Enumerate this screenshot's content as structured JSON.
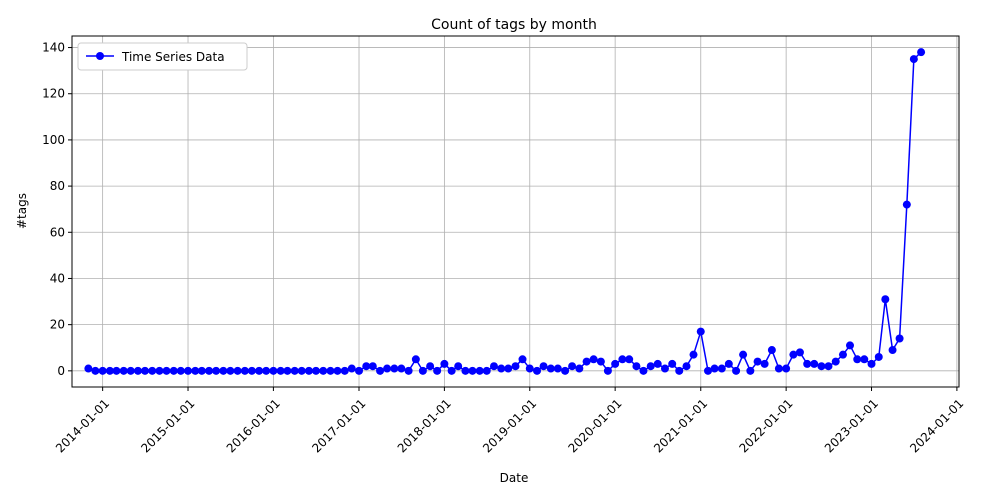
{
  "chart_data": {
    "type": "line",
    "title": "Count of tags by month",
    "xlabel": "Date",
    "ylabel": "#tags",
    "grid": true,
    "legend_position": "top-left",
    "series": [
      {
        "name": "Time Series Data",
        "color": "#0000ff",
        "marker": "circle",
        "x": [
          "2013-11-01",
          "2013-12-01",
          "2014-01-01",
          "2014-02-01",
          "2014-03-01",
          "2014-04-01",
          "2014-05-01",
          "2014-06-01",
          "2014-07-01",
          "2014-08-01",
          "2014-09-01",
          "2014-10-01",
          "2014-11-01",
          "2014-12-01",
          "2015-01-01",
          "2015-02-01",
          "2015-03-01",
          "2015-04-01",
          "2015-05-01",
          "2015-06-01",
          "2015-07-01",
          "2015-08-01",
          "2015-09-01",
          "2015-10-01",
          "2015-11-01",
          "2015-12-01",
          "2016-01-01",
          "2016-02-01",
          "2016-03-01",
          "2016-04-01",
          "2016-05-01",
          "2016-06-01",
          "2016-07-01",
          "2016-08-01",
          "2016-09-01",
          "2016-10-01",
          "2016-11-01",
          "2016-12-01",
          "2017-01-01",
          "2017-02-01",
          "2017-03-01",
          "2017-04-01",
          "2017-05-01",
          "2017-06-01",
          "2017-07-01",
          "2017-08-01",
          "2017-09-01",
          "2017-10-01",
          "2017-11-01",
          "2017-12-01",
          "2018-01-01",
          "2018-02-01",
          "2018-03-01",
          "2018-04-01",
          "2018-05-01",
          "2018-06-01",
          "2018-07-01",
          "2018-08-01",
          "2018-09-01",
          "2018-10-01",
          "2018-11-01",
          "2018-12-01",
          "2019-01-01",
          "2019-02-01",
          "2019-03-01",
          "2019-04-01",
          "2019-05-01",
          "2019-06-01",
          "2019-07-01",
          "2019-08-01",
          "2019-09-01",
          "2019-10-01",
          "2019-11-01",
          "2019-12-01",
          "2020-01-01",
          "2020-02-01",
          "2020-03-01",
          "2020-04-01",
          "2020-05-01",
          "2020-06-01",
          "2020-07-01",
          "2020-08-01",
          "2020-09-01",
          "2020-10-01",
          "2020-11-01",
          "2020-12-01",
          "2021-01-01",
          "2021-02-01",
          "2021-03-01",
          "2021-04-01",
          "2021-05-01",
          "2021-06-01",
          "2021-07-01",
          "2021-08-01",
          "2021-09-01",
          "2021-10-01",
          "2021-11-01",
          "2021-12-01",
          "2022-01-01",
          "2022-02-01",
          "2022-03-01",
          "2022-04-01",
          "2022-05-01",
          "2022-06-01",
          "2022-07-01",
          "2022-08-01",
          "2022-09-01",
          "2022-10-01",
          "2022-11-01",
          "2022-12-01",
          "2023-01-01",
          "2023-02-01",
          "2023-03-01",
          "2023-04-01",
          "2023-05-01",
          "2023-06-01",
          "2023-07-01",
          "2023-08-01"
        ],
        "y": [
          1,
          0,
          0,
          0,
          0,
          0,
          0,
          0,
          0,
          0,
          0,
          0,
          0,
          0,
          0,
          0,
          0,
          0,
          0,
          0,
          0,
          0,
          0,
          0,
          0,
          0,
          0,
          0,
          0,
          0,
          0,
          0,
          0,
          0,
          0,
          0,
          0,
          1,
          0,
          2,
          2,
          0,
          1,
          1,
          1,
          0,
          5,
          0,
          2,
          0,
          3,
          0,
          2,
          0,
          0,
          0,
          0,
          2,
          1,
          1,
          2,
          5,
          1,
          0,
          2,
          1,
          1,
          0,
          2,
          1,
          4,
          5,
          4,
          0,
          3,
          5,
          5,
          2,
          0,
          2,
          3,
          1,
          3,
          0,
          2,
          7,
          17,
          0,
          1,
          1,
          3,
          0,
          7,
          0,
          4,
          3,
          9,
          1,
          1,
          7,
          8,
          3,
          3,
          2,
          2,
          4,
          7,
          11,
          5,
          5,
          3,
          6,
          31,
          9,
          14,
          72,
          135,
          138
        ]
      }
    ],
    "x_ticks": [
      "2014-01-01",
      "2015-01-01",
      "2016-01-01",
      "2017-01-01",
      "2018-01-01",
      "2019-01-01",
      "2020-01-01",
      "2021-01-01",
      "2022-01-01",
      "2023-01-01",
      "2024-01-01"
    ],
    "xlim": [
      "2013-08-23",
      "2024-01-10"
    ],
    "y_ticks": [
      0,
      20,
      40,
      60,
      80,
      100,
      120,
      140
    ],
    "ylim": [
      -7,
      145
    ]
  }
}
